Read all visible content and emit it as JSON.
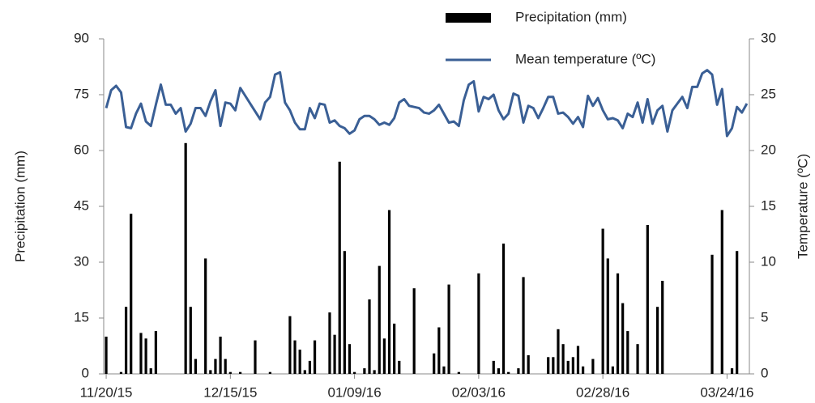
{
  "chart_data": {
    "type": "bar",
    "y_label": "Precipitation (mm)",
    "y2_label": "Temperature (ºC)",
    "categories": [
      "11/20/15",
      null,
      null,
      null,
      null,
      null,
      null,
      null,
      null,
      null,
      null,
      null,
      null,
      null,
      null,
      null,
      null,
      null,
      null,
      null,
      null,
      null,
      null,
      null,
      null,
      "12/15/15",
      null,
      null,
      null,
      null,
      null,
      null,
      null,
      null,
      null,
      null,
      null,
      null,
      null,
      null,
      null,
      null,
      null,
      null,
      null,
      null,
      null,
      null,
      null,
      null,
      "01/09/16",
      null,
      null,
      null,
      null,
      null,
      null,
      null,
      null,
      null,
      null,
      null,
      null,
      null,
      null,
      null,
      null,
      null,
      null,
      null,
      null,
      null,
      null,
      null,
      null,
      "02/03/16",
      null,
      null,
      null,
      null,
      null,
      null,
      null,
      null,
      null,
      null,
      null,
      null,
      null,
      null,
      null,
      null,
      null,
      null,
      null,
      null,
      null,
      null,
      null,
      null,
      "02/28/16",
      null,
      null,
      null,
      null,
      null,
      null,
      null,
      null,
      null,
      null,
      null,
      null,
      null,
      null,
      null,
      null,
      null,
      null,
      null,
      null,
      null,
      null,
      null,
      null,
      "03/24/16",
      null,
      null,
      null,
      null
    ],
    "series": [
      {
        "name": "Precipitation (mm)",
        "type": "bar",
        "color": "#000000",
        "values": [
          10,
          0,
          0,
          0.5,
          18,
          43,
          0,
          11,
          9.5,
          1.5,
          11.5,
          0,
          0,
          0,
          0,
          0,
          62,
          18,
          4,
          0,
          31,
          1,
          4,
          10,
          4,
          0.5,
          0,
          0.5,
          0,
          0,
          9,
          0,
          0,
          0.5,
          0,
          0,
          0,
          15.5,
          9,
          6.5,
          1,
          3.5,
          9,
          0,
          0,
          16.5,
          10.5,
          57,
          33,
          8,
          0.5,
          0,
          1.5,
          20,
          1,
          29,
          9.5,
          44,
          13.5,
          3.5,
          0,
          0,
          23,
          0,
          0,
          0,
          5.5,
          12.5,
          2,
          24,
          0,
          0.5,
          0,
          0,
          0,
          27,
          0,
          0,
          3.5,
          1.5,
          35,
          0.5,
          0,
          1.5,
          26,
          5,
          0,
          0,
          0,
          4.5,
          4.5,
          12,
          8,
          3.5,
          4.5,
          7.5,
          2,
          0,
          4,
          0,
          39,
          31,
          2,
          27,
          19,
          11.5,
          0,
          8,
          0,
          40,
          0,
          18,
          25,
          0,
          0,
          0,
          0,
          0,
          0,
          0,
          0,
          0,
          32,
          0,
          44,
          0,
          1.5,
          33,
          0,
          0
        ]
      },
      {
        "name": "Mean temperature (ºC)",
        "type": "line",
        "axis": "y2",
        "color": "#3a5f95",
        "values": [
          23.8,
          25.4,
          25.8,
          25.2,
          22.1,
          22.0,
          23.3,
          24.2,
          22.6,
          22.2,
          24.1,
          25.9,
          24.1,
          24.1,
          23.3,
          23.8,
          21.7,
          22.4,
          23.8,
          23.8,
          23.1,
          24.4,
          25.4,
          22.2,
          24.3,
          24.2,
          23.6,
          25.6,
          24.9,
          24.2,
          23.5,
          22.8,
          24.3,
          24.8,
          26.8,
          27.0,
          24.3,
          23.6,
          22.5,
          21.9,
          21.9,
          23.8,
          22.9,
          24.2,
          24.1,
          22.5,
          22.7,
          22.2,
          22.0,
          21.5,
          21.8,
          22.8,
          23.1,
          23.1,
          22.8,
          22.3,
          22.5,
          22.3,
          22.9,
          24.3,
          24.6,
          24.0,
          23.9,
          23.8,
          23.4,
          23.3,
          23.6,
          24.1,
          23.3,
          22.5,
          22.6,
          22.2,
          24.5,
          25.9,
          26.2,
          23.5,
          24.8,
          24.6,
          25.0,
          23.6,
          22.8,
          23.3,
          25.1,
          24.9,
          22.5,
          24.0,
          23.8,
          22.9,
          23.8,
          24.8,
          24.8,
          23.3,
          23.4,
          23.0,
          22.4,
          23.0,
          22.1,
          24.9,
          24.0,
          24.7,
          23.6,
          22.8,
          22.9,
          22.7,
          22.0,
          23.3,
          23.0,
          24.3,
          22.5,
          24.6,
          22.4,
          23.6,
          24.0,
          21.7,
          23.6,
          24.2,
          24.8,
          23.8,
          25.7,
          25.7,
          26.9,
          27.2,
          26.8,
          24.1,
          25.5,
          21.3,
          22.0,
          23.9,
          23.4,
          24.2
        ]
      }
    ],
    "ylim": [
      0,
      90
    ],
    "yticks": [
      0,
      15,
      30,
      45,
      60,
      75,
      90
    ],
    "y2lim": [
      0,
      30
    ],
    "y2ticks": [
      0,
      5,
      10,
      15,
      20,
      25,
      30
    ],
    "grid": false,
    "legend": "top"
  }
}
